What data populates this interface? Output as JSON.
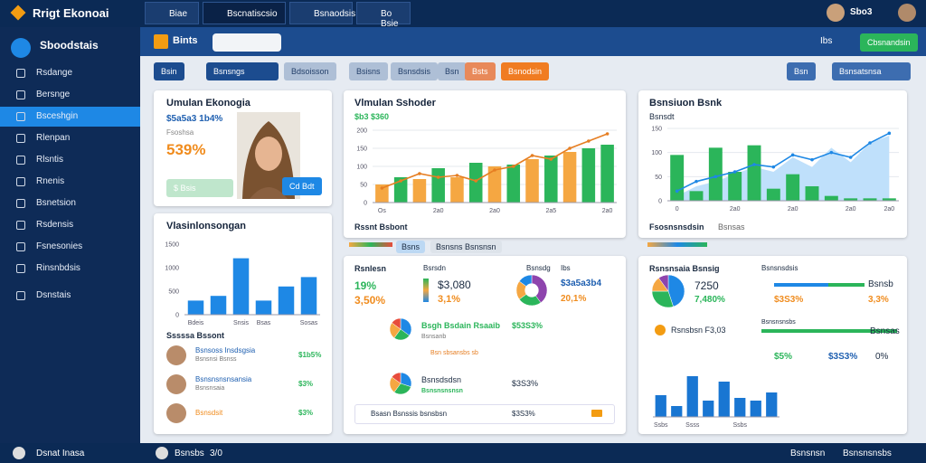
{
  "app": {
    "title": "Rrigt Ekonoai",
    "tabs": [
      "Biae",
      "Bscnatiscsio",
      "Bsnaodsis",
      "Bo Bsie"
    ],
    "user": "Sbo3"
  },
  "sidebar": {
    "title": "Sboodstais",
    "items": [
      "Rsdange",
      "Bersnge",
      "Bsceshgin",
      "Rlenpan",
      "Rlsntis",
      "Rnenis",
      "Bsnetsion",
      "Rsdensis",
      "Fsnesonies",
      "Rinsnbdsis",
      "Dsnstais"
    ],
    "footer": "Dsnat Inasa"
  },
  "header": {
    "title": "Bints",
    "label": "Ibs",
    "action": "Cbsnandsin"
  },
  "toolbar": {
    "search": "Bsin",
    "filter": "Bsnsngs",
    "chips": [
      "Bdsoisson",
      "Bsisns",
      "Bsnsdsis",
      "Bsn"
    ],
    "highlight": [
      "Bsts",
      "Bsnodsin"
    ],
    "right": [
      "Bsn",
      "Bsnsatsnsa"
    ]
  },
  "profile_card": {
    "title": "Umulan Ekonogia",
    "value": "$5a5a3 1b4%",
    "label": "Fsoshsa",
    "percent": "539%",
    "button_left": "$ Bsis",
    "button_right": "Cd Bdt"
  },
  "list_card": {
    "title": "Vlasinlonsongan",
    "subtitle": "Sssssa Bssont",
    "rows": [
      {
        "name": "Bsnsoss Insdsgsia",
        "sub": "Bsnsnsi Bsnss",
        "value": "$1b5%"
      },
      {
        "name": "Bsnsnsnsnsansia",
        "sub": "Bsnsnsaia",
        "value": "$3%"
      },
      {
        "name": "Bsnsdsit",
        "value": "$3%"
      }
    ]
  },
  "trend_card": {
    "footer": "Rssnt Bsbont",
    "tabs": [
      "Bsns",
      "Bsnsns Bsnsnsn"
    ]
  },
  "growth_card": {
    "footer": "Fsosnsnsdsin",
    "footer_sub": "Bsnsas"
  },
  "stats_card": {
    "title": "Rsnlesn",
    "label": "Bsrsdn",
    "a": "19%",
    "b": "3,50%",
    "value": "$3,080",
    "value2": "3,1%",
    "pie_label": "Bsnsdg",
    "pie_sub": "Ibs",
    "pie_value": "$3a5a3b4",
    "pie_pct": "20,1%",
    "rows": [
      {
        "title": "Bsgh Bsdain Rsaaib",
        "sub": "Bsnsanb",
        "value": "$53S3%",
        "note": "Bsn sbsansbs sb"
      },
      {
        "title": "Bsnsdsdsn",
        "sub": "Bsnsnsnsnsn",
        "value": "$3S3%"
      }
    ],
    "footer": "Bsasn Bsnssis bsnsbsn",
    "footer_value": "$3S3%"
  },
  "mixed_card": {
    "title": "Rsnsnsaia Bsnsig",
    "label": "Bsnsnsdsis",
    "value": "7250",
    "pct": "7,480%",
    "side_a": "Bsnsb",
    "side_b": "3,3%",
    "row_a": "$3S3%",
    "row_b": "Bsnsas",
    "item": "Rsnsbsn F3,03",
    "item_label": "Bsnsnsnsbs",
    "stat_a": "$5%",
    "stat_b": "$3S3%",
    "stat_c": "0%"
  },
  "bottom": {
    "user": "Bsnsbs",
    "code": "3/0",
    "right_a": "Bsnsnsn",
    "right_b": "Bsnsnsnsbs"
  },
  "chart_data": [
    {
      "type": "bar",
      "title": "Vlmulan Sshoder",
      "subtitle": "$b3 $360",
      "categories": [
        "Os",
        null,
        null,
        "2a0",
        null,
        null,
        "2a0",
        null,
        null,
        "2a5",
        null,
        null,
        "2a0"
      ],
      "values": [
        50,
        70,
        65,
        95,
        70,
        110,
        100,
        105,
        120,
        130,
        140,
        150,
        160
      ],
      "bar_colors": [
        "#f5a742",
        "#2bb55a",
        "#f5a742",
        "#2bb55a",
        "#f5a742",
        "#2bb55a",
        "#f5a742",
        "#2bb55a",
        "#f5a742",
        "#2bb55a",
        "#f5a742",
        "#2bb55a",
        "#2bb55a"
      ],
      "line": {
        "color": "#e67e22",
        "values": [
          40,
          60,
          80,
          70,
          75,
          60,
          90,
          100,
          130,
          120,
          150,
          170,
          190
        ]
      },
      "ylim": [
        0,
        200
      ],
      "yticks": [
        0,
        50,
        100,
        150,
        200
      ],
      "grid": true
    },
    {
      "type": "bar",
      "title": "Bsnsiuon Bsnk",
      "subtitle": "Bsnsdt",
      "categories": [
        "0",
        null,
        null,
        "2a0",
        null,
        null,
        "2a0",
        null,
        null,
        "2a0",
        null,
        "2a0"
      ],
      "values": [
        95,
        20,
        110,
        60,
        115,
        25,
        55,
        30,
        10,
        5,
        5,
        5
      ],
      "bar_colors": [
        "#2bb55a",
        "#2bb55a",
        "#2bb55a",
        "#2bb55a",
        "#2bb55a",
        "#2bb55a",
        "#2bb55a",
        "#2bb55a",
        "#2bb55a",
        "#2bb55a",
        "#2bb55a",
        "#2bb55a"
      ],
      "line": {
        "color": "#1e88e5",
        "values": [
          20,
          40,
          50,
          60,
          75,
          70,
          95,
          85,
          100,
          90,
          120,
          140
        ]
      },
      "area": {
        "color": "#bfe0fb",
        "values": [
          10,
          30,
          40,
          55,
          70,
          60,
          90,
          70,
          110,
          80,
          120,
          135
        ]
      },
      "ylim": [
        0,
        150
      ],
      "yticks": [
        0,
        50,
        100,
        150
      ],
      "grid": true
    },
    {
      "type": "bar",
      "categories": [
        "Bdeis",
        null,
        "Snsis",
        "Bsas",
        null,
        "Sosas"
      ],
      "values": [
        300,
        400,
        1200,
        300,
        600,
        800
      ],
      "bar_colors": [
        "#1e88e5",
        "#1e88e5",
        "#1e88e5",
        "#1e88e5",
        "#1e88e5",
        "#1e88e5"
      ],
      "ylim": [
        0,
        1500
      ],
      "yticks": [
        0,
        500,
        1000,
        1500
      ],
      "grid": false
    },
    {
      "type": "bar",
      "categories": [
        "Ssbs",
        null,
        "Ssss",
        null,
        null,
        "Ssbs",
        null,
        null
      ],
      "values": [
        40,
        20,
        75,
        30,
        65,
        35,
        30,
        45
      ],
      "bar_colors": [
        "#1976d2",
        "#1976d2",
        "#1976d2",
        "#1976d2",
        "#1976d2",
        "#1976d2",
        "#1976d2",
        "#1976d2"
      ],
      "ylim": [
        0,
        100
      ],
      "grid": false
    },
    {
      "type": "pie",
      "donut": true,
      "values": [
        40,
        25,
        20,
        15
      ],
      "colors": [
        "#8e44ad",
        "#2bb55a",
        "#f5a742",
        "#1e88e5"
      ]
    },
    {
      "type": "pie",
      "values": [
        35,
        25,
        25,
        15
      ],
      "colors": [
        "#1e88e5",
        "#2bb55a",
        "#f5a742",
        "#e74c3c"
      ]
    },
    {
      "type": "pie",
      "values": [
        30,
        30,
        25,
        15
      ],
      "colors": [
        "#1e88e5",
        "#2bb55a",
        "#f5a742",
        "#e74c3c"
      ]
    },
    {
      "type": "pie",
      "values": [
        45,
        30,
        15,
        10
      ],
      "colors": [
        "#1e88e5",
        "#2bb55a",
        "#f5a742",
        "#8e44ad"
      ]
    }
  ]
}
